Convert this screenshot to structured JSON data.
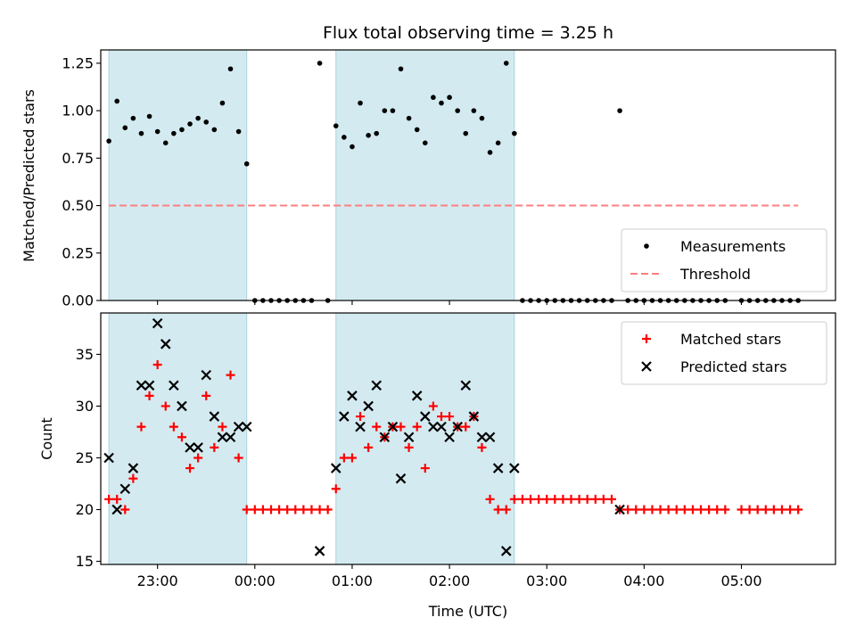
{
  "chart_data": [
    {
      "type": "scatter",
      "title": "Flux total observing time = 3.25 h",
      "xlabel": "",
      "ylabel": "Matched/Predicted stars",
      "ylim": [
        0,
        1.32
      ],
      "yticks": [
        "0.00",
        "0.25",
        "0.50",
        "0.75",
        "1.00",
        "1.25"
      ],
      "xlim": [
        "22:25",
        "05:58"
      ],
      "x_tick_labels_shown": false,
      "shaded_spans": [
        [
          "22:30",
          "23:55"
        ],
        [
          "00:50",
          "02:40"
        ]
      ],
      "shade_color": "#d3eaf0",
      "threshold": {
        "name": "Threshold",
        "y": 0.5,
        "x_range": [
          "22:30",
          "05:35"
        ],
        "color": "#ff7f7f"
      },
      "legend": {
        "position": "lower right",
        "entries": [
          "Measurements",
          "Threshold"
        ]
      },
      "series": [
        {
          "name": "Measurements",
          "marker": "dot",
          "color": "#000000",
          "points": [
            [
              "22:30",
              0.84
            ],
            [
              "22:35",
              1.05
            ],
            [
              "22:40",
              0.91
            ],
            [
              "22:45",
              0.96
            ],
            [
              "22:50",
              0.88
            ],
            [
              "22:55",
              0.97
            ],
            [
              "23:00",
              0.89
            ],
            [
              "23:05",
              0.83
            ],
            [
              "23:10",
              0.88
            ],
            [
              "23:15",
              0.9
            ],
            [
              "23:20",
              0.93
            ],
            [
              "23:25",
              0.96
            ],
            [
              "23:30",
              0.94
            ],
            [
              "23:35",
              0.9
            ],
            [
              "23:40",
              1.04
            ],
            [
              "23:45",
              1.22
            ],
            [
              "23:50",
              0.89
            ],
            [
              "23:55",
              0.72
            ],
            [
              "00:00",
              0.0
            ],
            [
              "00:05",
              0.0
            ],
            [
              "00:10",
              0.0
            ],
            [
              "00:15",
              0.0
            ],
            [
              "00:20",
              0.0
            ],
            [
              "00:25",
              0.0
            ],
            [
              "00:30",
              0.0
            ],
            [
              "00:35",
              0.0
            ],
            [
              "00:40",
              1.25
            ],
            [
              "00:45",
              0.0
            ],
            [
              "00:50",
              0.92
            ],
            [
              "00:55",
              0.86
            ],
            [
              "01:00",
              0.81
            ],
            [
              "01:05",
              1.04
            ],
            [
              "01:10",
              0.87
            ],
            [
              "01:15",
              0.88
            ],
            [
              "01:20",
              1.0
            ],
            [
              "01:25",
              1.0
            ],
            [
              "01:30",
              1.22
            ],
            [
              "01:35",
              0.96
            ],
            [
              "01:40",
              0.9
            ],
            [
              "01:45",
              0.83
            ],
            [
              "01:50",
              1.07
            ],
            [
              "01:55",
              1.04
            ],
            [
              "02:00",
              1.07
            ],
            [
              "02:05",
              1.0
            ],
            [
              "02:10",
              0.88
            ],
            [
              "02:15",
              1.0
            ],
            [
              "02:20",
              0.96
            ],
            [
              "02:25",
              0.78
            ],
            [
              "02:30",
              0.83
            ],
            [
              "02:35",
              1.25
            ],
            [
              "02:40",
              0.88
            ],
            [
              "02:45",
              0.0
            ],
            [
              "02:50",
              0.0
            ],
            [
              "02:55",
              0.0
            ],
            [
              "03:00",
              0.0
            ],
            [
              "03:05",
              0.0
            ],
            [
              "03:10",
              0.0
            ],
            [
              "03:15",
              0.0
            ],
            [
              "03:20",
              0.0
            ],
            [
              "03:25",
              0.0
            ],
            [
              "03:30",
              0.0
            ],
            [
              "03:35",
              0.0
            ],
            [
              "03:40",
              0.0
            ],
            [
              "03:45",
              1.0
            ],
            [
              "03:50",
              0.0
            ],
            [
              "03:55",
              0.0
            ],
            [
              "04:00",
              0.0
            ],
            [
              "04:05",
              0.0
            ],
            [
              "04:10",
              0.0
            ],
            [
              "04:15",
              0.0
            ],
            [
              "04:20",
              0.0
            ],
            [
              "04:25",
              0.0
            ],
            [
              "04:30",
              0.0
            ],
            [
              "04:35",
              0.0
            ],
            [
              "04:40",
              0.0
            ],
            [
              "04:45",
              0.0
            ],
            [
              "04:50",
              0.0
            ],
            [
              "05:00",
              0.0
            ],
            [
              "05:05",
              0.0
            ],
            [
              "05:10",
              0.0
            ],
            [
              "05:15",
              0.0
            ],
            [
              "05:20",
              0.0
            ],
            [
              "05:25",
              0.0
            ],
            [
              "05:30",
              0.0
            ],
            [
              "05:35",
              0.0
            ]
          ]
        }
      ]
    },
    {
      "type": "scatter",
      "title": "",
      "xlabel": "Time (UTC)",
      "ylabel": "Count",
      "ylim": [
        14.7,
        39
      ],
      "yticks": [
        "15",
        "20",
        "25",
        "30",
        "35"
      ],
      "xlim": [
        "22:25",
        "05:58"
      ],
      "xticks": [
        "23:00",
        "00:00",
        "01:00",
        "02:00",
        "03:00",
        "04:00",
        "05:00"
      ],
      "shaded_spans": [
        [
          "22:30",
          "23:55"
        ],
        [
          "00:50",
          "02:40"
        ]
      ],
      "shade_color": "#d3eaf0",
      "legend": {
        "position": "upper right",
        "entries": [
          "Matched stars",
          "Predicted stars"
        ]
      },
      "series": [
        {
          "name": "Matched stars",
          "marker": "plus",
          "color": "#ff0000",
          "points": [
            [
              "22:30",
              21
            ],
            [
              "22:35",
              21
            ],
            [
              "22:40",
              20
            ],
            [
              "22:45",
              23
            ],
            [
              "22:50",
              28
            ],
            [
              "22:55",
              31
            ],
            [
              "23:00",
              34
            ],
            [
              "23:05",
              30
            ],
            [
              "23:10",
              28
            ],
            [
              "23:15",
              27
            ],
            [
              "23:20",
              24
            ],
            [
              "23:25",
              25
            ],
            [
              "23:30",
              31
            ],
            [
              "23:35",
              26
            ],
            [
              "23:40",
              28
            ],
            [
              "23:45",
              33
            ],
            [
              "23:50",
              25
            ],
            [
              "23:55",
              20
            ],
            [
              "00:00",
              20
            ],
            [
              "00:05",
              20
            ],
            [
              "00:10",
              20
            ],
            [
              "00:15",
              20
            ],
            [
              "00:20",
              20
            ],
            [
              "00:25",
              20
            ],
            [
              "00:30",
              20
            ],
            [
              "00:35",
              20
            ],
            [
              "00:40",
              20
            ],
            [
              "00:45",
              20
            ],
            [
              "00:50",
              22
            ],
            [
              "00:55",
              25
            ],
            [
              "01:00",
              25
            ],
            [
              "01:05",
              29
            ],
            [
              "01:10",
              26
            ],
            [
              "01:15",
              28
            ],
            [
              "01:20",
              27
            ],
            [
              "01:25",
              28
            ],
            [
              "01:30",
              28
            ],
            [
              "01:35",
              26
            ],
            [
              "01:40",
              28
            ],
            [
              "01:45",
              24
            ],
            [
              "01:50",
              30
            ],
            [
              "01:55",
              29
            ],
            [
              "02:00",
              29
            ],
            [
              "02:05",
              28
            ],
            [
              "02:10",
              28
            ],
            [
              "02:15",
              29
            ],
            [
              "02:20",
              26
            ],
            [
              "02:25",
              21
            ],
            [
              "02:30",
              20
            ],
            [
              "02:35",
              20
            ],
            [
              "02:40",
              21
            ],
            [
              "02:45",
              21
            ],
            [
              "02:50",
              21
            ],
            [
              "02:55",
              21
            ],
            [
              "03:00",
              21
            ],
            [
              "03:05",
              21
            ],
            [
              "03:10",
              21
            ],
            [
              "03:15",
              21
            ],
            [
              "03:20",
              21
            ],
            [
              "03:25",
              21
            ],
            [
              "03:30",
              21
            ],
            [
              "03:35",
              21
            ],
            [
              "03:40",
              21
            ],
            [
              "03:45",
              20
            ],
            [
              "03:50",
              20
            ],
            [
              "03:55",
              20
            ],
            [
              "04:00",
              20
            ],
            [
              "04:05",
              20
            ],
            [
              "04:10",
              20
            ],
            [
              "04:15",
              20
            ],
            [
              "04:20",
              20
            ],
            [
              "04:25",
              20
            ],
            [
              "04:30",
              20
            ],
            [
              "04:35",
              20
            ],
            [
              "04:40",
              20
            ],
            [
              "04:45",
              20
            ],
            [
              "04:50",
              20
            ],
            [
              "05:00",
              20
            ],
            [
              "05:05",
              20
            ],
            [
              "05:10",
              20
            ],
            [
              "05:15",
              20
            ],
            [
              "05:20",
              20
            ],
            [
              "05:25",
              20
            ],
            [
              "05:30",
              20
            ],
            [
              "05:35",
              20
            ]
          ]
        },
        {
          "name": "Predicted stars",
          "marker": "x",
          "color": "#000000",
          "points": [
            [
              "22:30",
              25
            ],
            [
              "22:35",
              20
            ],
            [
              "22:40",
              22
            ],
            [
              "22:45",
              24
            ],
            [
              "22:50",
              32
            ],
            [
              "22:55",
              32
            ],
            [
              "23:00",
              38
            ],
            [
              "23:05",
              36
            ],
            [
              "23:10",
              32
            ],
            [
              "23:15",
              30
            ],
            [
              "23:20",
              26
            ],
            [
              "23:25",
              26
            ],
            [
              "23:30",
              33
            ],
            [
              "23:35",
              29
            ],
            [
              "23:40",
              27
            ],
            [
              "23:45",
              27
            ],
            [
              "23:50",
              28
            ],
            [
              "23:55",
              28
            ],
            [
              "00:40",
              16
            ],
            [
              "00:50",
              24
            ],
            [
              "00:55",
              29
            ],
            [
              "01:00",
              31
            ],
            [
              "01:05",
              28
            ],
            [
              "01:10",
              30
            ],
            [
              "01:15",
              32
            ],
            [
              "01:20",
              27
            ],
            [
              "01:25",
              28
            ],
            [
              "01:30",
              23
            ],
            [
              "01:35",
              27
            ],
            [
              "01:40",
              31
            ],
            [
              "01:45",
              29
            ],
            [
              "01:50",
              28
            ],
            [
              "01:55",
              28
            ],
            [
              "02:00",
              27
            ],
            [
              "02:05",
              28
            ],
            [
              "02:10",
              32
            ],
            [
              "02:15",
              29
            ],
            [
              "02:20",
              27
            ],
            [
              "02:25",
              27
            ],
            [
              "02:30",
              24
            ],
            [
              "02:35",
              16
            ],
            [
              "02:40",
              24
            ],
            [
              "03:45",
              20
            ]
          ]
        }
      ]
    }
  ]
}
